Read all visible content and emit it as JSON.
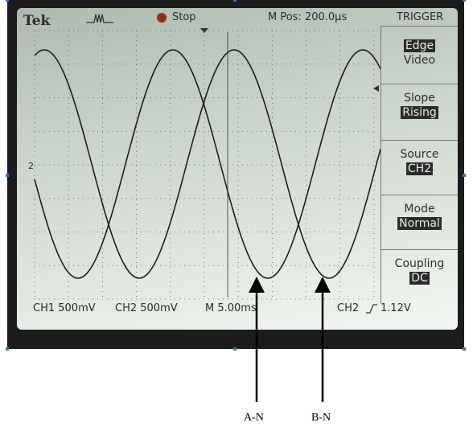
{
  "header": {
    "brand": "Tek",
    "run_state": "Stop",
    "position": "M Pos: 200.0μs",
    "menu_title": "TRIGGER"
  },
  "menu": [
    {
      "label": "Edge",
      "value": "Video"
    },
    {
      "label": "Slope",
      "value": "Rising"
    },
    {
      "label": "Source",
      "value": "CH2"
    },
    {
      "label": "Mode",
      "value": "Normal"
    },
    {
      "label": "Coupling",
      "value": "DC"
    }
  ],
  "status": {
    "ch1": "CH1  500mV",
    "ch2": "CH2  500mV",
    "timebase": "M 5.00ms",
    "trigger": "CH2",
    "trigger_slope_icon": "rising-edge-icon",
    "trigger_level": "1.12V"
  },
  "markers": {
    "ch2_ground": "2",
    "trigger_arrow": "trigger-level-arrow-icon"
  },
  "callouts": {
    "a": "A-N",
    "b": "B-N"
  },
  "colors": {
    "trace": "#1e1e1e",
    "graticule": "#5a5a5a",
    "stop_indicator": "#9a2a1a",
    "handle": "#3f6fd0"
  }
}
